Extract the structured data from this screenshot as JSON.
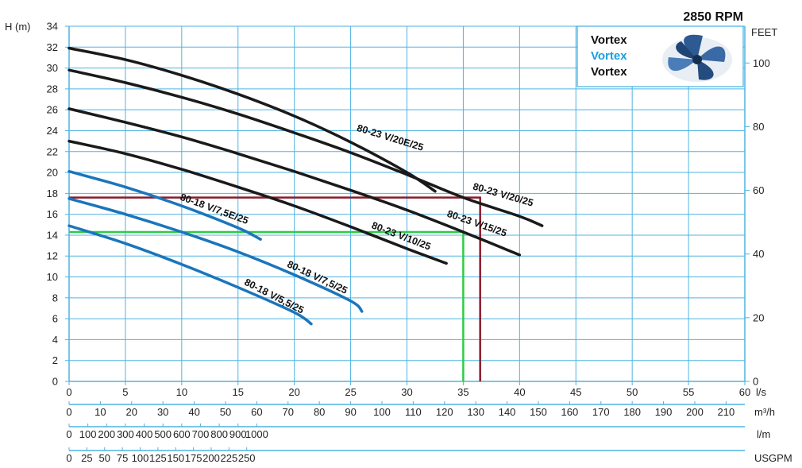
{
  "chart_data": {
    "type": "line",
    "speed_label": "2850 RPM",
    "y_axis": {
      "label": "H (m)",
      "ylim": [
        0,
        34
      ],
      "ticks": [
        0,
        2,
        4,
        6,
        8,
        10,
        12,
        14,
        16,
        18,
        20,
        22,
        24,
        26,
        28,
        30,
        32,
        34
      ]
    },
    "y2_axis": {
      "label": "FEET",
      "ticks": [
        0,
        20,
        40,
        60,
        80,
        100
      ]
    },
    "x_axis": {
      "unit": "l/s",
      "xlim": [
        0,
        60
      ],
      "ticks": [
        0,
        5,
        10,
        15,
        20,
        25,
        30,
        35,
        40,
        45,
        50,
        55,
        60
      ]
    },
    "secondary_x_axes": [
      {
        "unit": "m³/h",
        "ticks": [
          0,
          10,
          20,
          30,
          40,
          50,
          60,
          70,
          80,
          90,
          100,
          110,
          120,
          130,
          140,
          150,
          160,
          170,
          180,
          190,
          200,
          210
        ]
      },
      {
        "unit": "l/m",
        "ticks": [
          0,
          100,
          200,
          300,
          400,
          500,
          600,
          700,
          800,
          900,
          1000
        ]
      },
      {
        "unit": "USGPM",
        "ticks": [
          0,
          25,
          50,
          75,
          100,
          125,
          150,
          175,
          200,
          225,
          250
        ]
      }
    ],
    "legend": {
      "items": [
        "Vortex",
        "Vortex",
        "Vortex"
      ],
      "colors": [
        "#111111",
        "#1aa0e0",
        "#111111"
      ],
      "placement": "top-right"
    },
    "series": [
      {
        "name": "80-23 V/20E/25",
        "color": "#1a1a1a",
        "x": [
          0,
          5,
          10,
          15,
          20,
          25,
          30,
          32.5
        ],
        "y": [
          31.9,
          30.8,
          29.3,
          27.5,
          25.4,
          22.9,
          20.0,
          18.2
        ]
      },
      {
        "name": "80-23 V/20/25",
        "color": "#1a1a1a",
        "x": [
          0,
          5,
          10,
          15,
          20,
          25,
          30,
          35,
          40,
          42
        ],
        "y": [
          29.8,
          28.6,
          27.2,
          25.6,
          23.8,
          21.9,
          19.8,
          17.6,
          15.8,
          14.9
        ]
      },
      {
        "name": "80-23 V/15/25",
        "color": "#1a1a1a",
        "x": [
          0,
          5,
          10,
          15,
          20,
          25,
          30,
          35,
          40
        ],
        "y": [
          26.1,
          24.8,
          23.4,
          21.8,
          20.1,
          18.3,
          16.4,
          14.3,
          12.1
        ]
      },
      {
        "name": "80-23 V/10/25",
        "color": "#1a1a1a",
        "x": [
          0,
          5,
          10,
          15,
          20,
          25,
          30,
          33.5
        ],
        "y": [
          23.0,
          21.8,
          20.3,
          18.6,
          16.8,
          14.8,
          12.7,
          11.3
        ]
      },
      {
        "name": "80-18 V/7,5E/25",
        "color": "#1b75bb",
        "x": [
          0,
          5,
          10,
          15,
          17
        ],
        "y": [
          20.1,
          18.6,
          16.8,
          14.7,
          13.6
        ]
      },
      {
        "name": "80-18 V/7,5/25",
        "color": "#1b75bb",
        "x": [
          0,
          5,
          10,
          15,
          20,
          25,
          26
        ],
        "y": [
          17.5,
          16.0,
          14.3,
          12.4,
          10.2,
          7.7,
          6.7
        ]
      },
      {
        "name": "80-18 V/5,5/25",
        "color": "#1b75bb",
        "x": [
          0,
          5,
          10,
          15,
          20,
          21.5
        ],
        "y": [
          14.9,
          13.2,
          11.2,
          9.0,
          6.6,
          5.5
        ]
      }
    ],
    "reference_lines": [
      {
        "color": "#8b1a2a",
        "h": 17.6,
        "q": 36.5
      },
      {
        "color": "#2ecc40",
        "h": 14.3,
        "q": 35.0
      }
    ]
  }
}
